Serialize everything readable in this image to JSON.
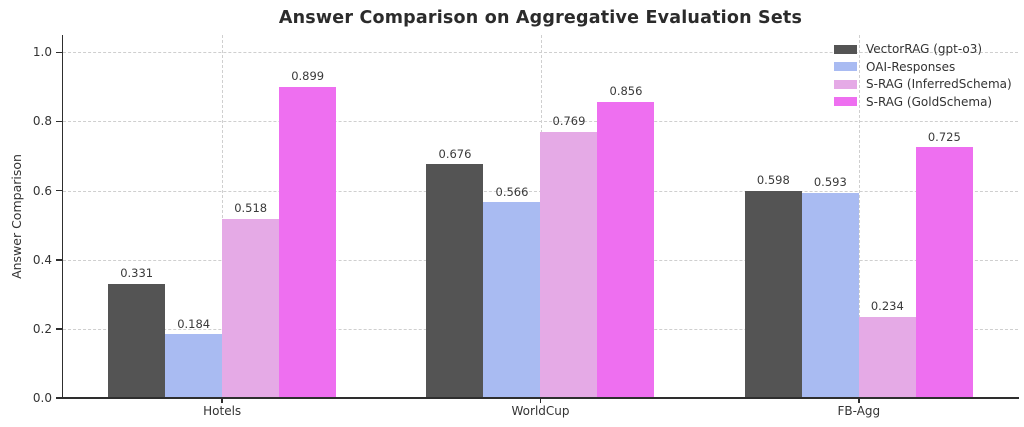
{
  "title": "Answer Comparison on Aggregative Evaluation Sets",
  "chart_data": {
    "type": "bar",
    "title": "Answer Comparison on Aggregative Evaluation Sets",
    "xlabel": "",
    "ylabel": "Answer Comparison",
    "categories": [
      "Hotels",
      "WorldCup",
      "FB-Agg"
    ],
    "series": [
      {
        "name": "VectorRAG (gpt-o3)",
        "color": "#545454",
        "values": [
          0.331,
          0.676,
          0.598
        ]
      },
      {
        "name": "OAI-Responses",
        "color": "#a9bbf2",
        "values": [
          0.184,
          0.566,
          0.593
        ]
      },
      {
        "name": "S-RAG (InferredSchema)",
        "color": "#e5aae6",
        "values": [
          0.518,
          0.769,
          0.234
        ]
      },
      {
        "name": "S-RAG (GoldSchema)",
        "color": "#ee6ff0",
        "values": [
          0.899,
          0.856,
          0.725
        ]
      }
    ],
    "ylim": [
      0,
      1.05
    ],
    "yticks": [
      0.0,
      0.2,
      0.4,
      0.6,
      0.8,
      1.0
    ],
    "grid": "both, dashed, light-gray",
    "legend_position": "upper right",
    "value_labels": "3 decimal places above each bar",
    "spines": "left and bottom only",
    "colors": {
      "background": "#ffffff",
      "grid": "#cfcfcf",
      "axis": "#2e2e2e",
      "text": "#333333"
    }
  }
}
